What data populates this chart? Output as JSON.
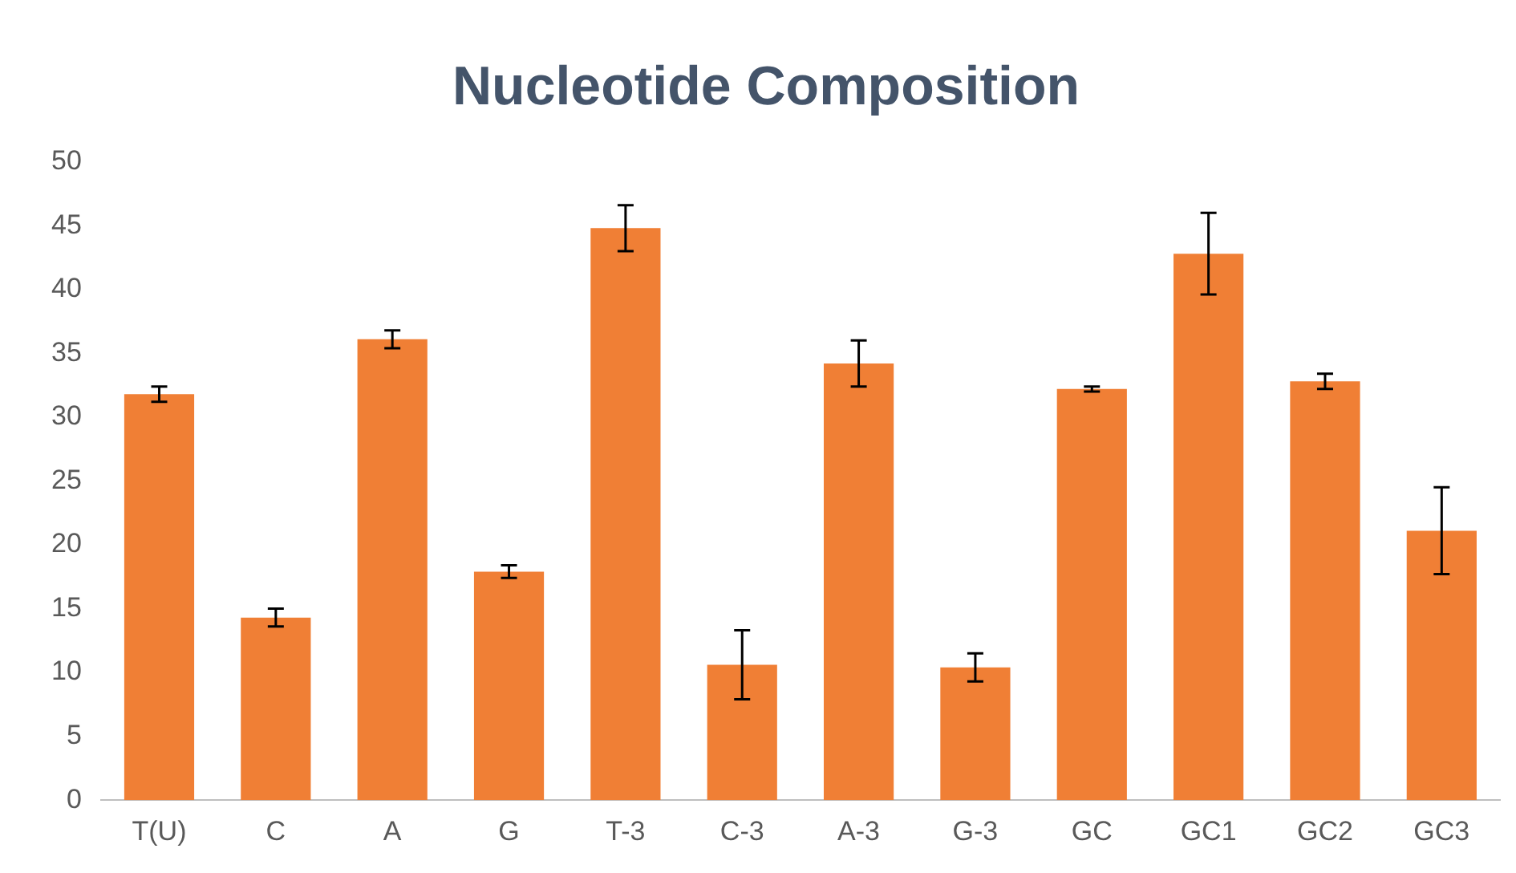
{
  "chart_data": {
    "type": "bar",
    "title": "Nucleotide Composition",
    "categories": [
      "T(U)",
      "C",
      "A",
      "G",
      "T-3",
      "C-3",
      "A-3",
      "G-3",
      "GC",
      "GC1",
      "GC2",
      "GC3"
    ],
    "values": [
      31.8,
      14.3,
      36.1,
      17.9,
      44.8,
      10.6,
      34.2,
      10.4,
      32.2,
      42.8,
      32.8,
      21.1
    ],
    "errors": [
      0.6,
      0.7,
      0.7,
      0.5,
      1.8,
      2.7,
      1.8,
      1.1,
      0.2,
      3.2,
      0.6,
      3.4
    ],
    "color": "#f07f35",
    "ylim": [
      0,
      50
    ],
    "yticks": [
      0,
      5,
      10,
      15,
      20,
      25,
      30,
      35,
      40,
      45,
      50
    ],
    "grid": false,
    "legend": false
  }
}
